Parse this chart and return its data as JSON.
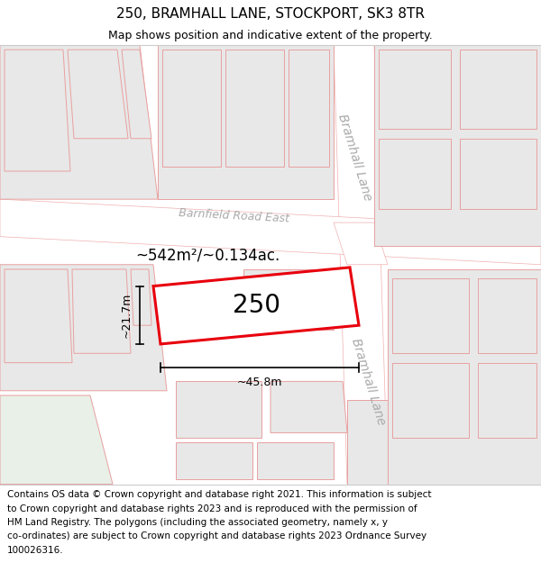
{
  "title": "250, BRAMHALL LANE, STOCKPORT, SK3 8TR",
  "subtitle": "Map shows position and indicative extent of the property.",
  "footer_lines": [
    "Contains OS data © Crown copyright and database right 2021. This information is subject",
    "to Crown copyright and database rights 2023 and is reproduced with the permission of",
    "HM Land Registry. The polygons (including the associated geometry, namely x, y",
    "co-ordinates) are subject to Crown copyright and database rights 2023 Ordnance Survey",
    "100026316."
  ],
  "map_bg": "#f7f7f7",
  "road_color": "#ffffff",
  "plot_outline_color": "#e8000d",
  "road_outline": "#f0b0b0",
  "bldg_fill": "#e8e8e8",
  "bldg_outline": "#e8a0a0",
  "road_label_1": "Barnfield Road East",
  "road_label_2": "Bramhall Lane",
  "property_label": "250",
  "area_label": "~542m²/~0.134ac.",
  "dim_width": "~45.8m",
  "dim_height": "~21.7m",
  "title_fontsize": 11,
  "subtitle_fontsize": 9,
  "footer_fontsize": 7.5,
  "label_color": "#aaaaaa"
}
